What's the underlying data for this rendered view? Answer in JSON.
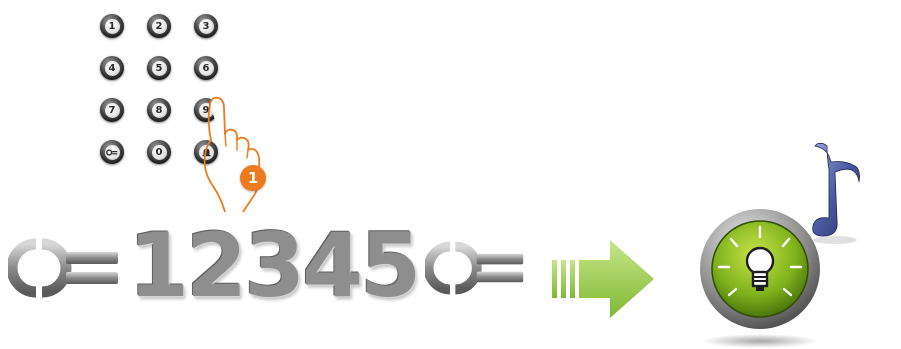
{
  "keypad": {
    "keys": [
      {
        "label": "1",
        "icon": ""
      },
      {
        "label": "2",
        "icon": ""
      },
      {
        "label": "3",
        "icon": ""
      },
      {
        "label": "4",
        "icon": ""
      },
      {
        "label": "5",
        "icon": ""
      },
      {
        "label": "6",
        "icon": ""
      },
      {
        "label": "7",
        "icon": ""
      },
      {
        "label": "8",
        "icon": ""
      },
      {
        "label": "9",
        "icon": ""
      },
      {
        "label": "",
        "icon": "key-icon"
      },
      {
        "label": "0",
        "icon": ""
      },
      {
        "label": "",
        "icon": "bell-icon"
      }
    ]
  },
  "step": {
    "number": "1"
  },
  "code": {
    "digits": [
      "1",
      "2",
      "3",
      "4",
      "5"
    ],
    "prefix_icon": "key-icon",
    "suffix_icon": "key-icon"
  },
  "result": {
    "arrow_icon": "arrow-right-icon",
    "button_icon": "light-bulb-icon",
    "sound_icon": "music-note-icon"
  },
  "colors": {
    "step_badge": "#ee7a1e",
    "arrow": "#8cc63f",
    "button_green": "#7fb21c",
    "note": "#4a5aa0"
  }
}
